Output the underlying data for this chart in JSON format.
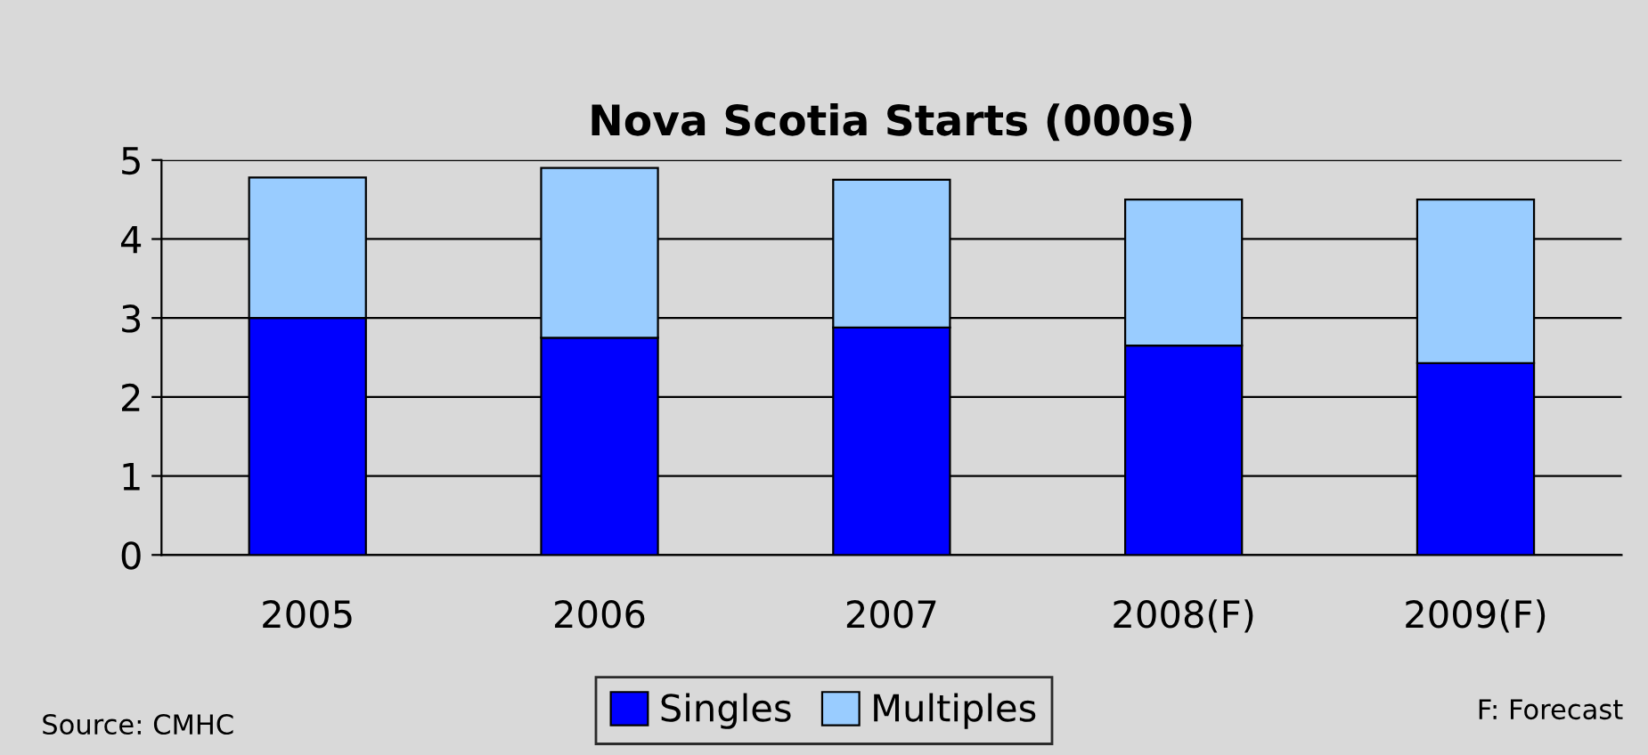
{
  "chart_data": {
    "type": "bar",
    "title": "Nova Scotia Starts (000s)",
    "stacked": true,
    "categories": [
      "2005",
      "2006",
      "2007",
      "2008(F)",
      "2009(F)"
    ],
    "series": [
      {
        "name": "Singles",
        "color": "#0000ff",
        "values": [
          3.0,
          2.75,
          2.88,
          2.65,
          2.43
        ]
      },
      {
        "name": "Multiples",
        "color": "#99ccff",
        "values": [
          1.78,
          2.15,
          1.87,
          1.85,
          2.07
        ]
      }
    ],
    "ylim": [
      0,
      5
    ],
    "yticks": [
      0,
      1,
      2,
      3,
      4,
      5
    ],
    "grid": "y",
    "legend": "bottom",
    "annotations": [
      "Source: CMHC",
      "F: Forecast"
    ]
  }
}
